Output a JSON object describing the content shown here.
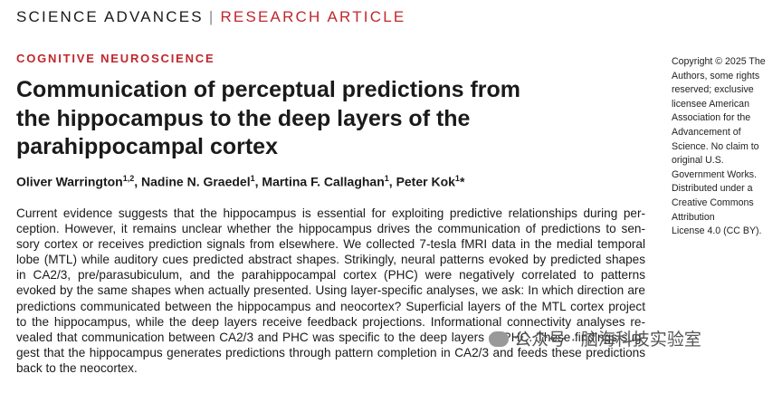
{
  "header": {
    "journal": "SCIENCE ADVANCES",
    "separator": "|",
    "article_type": "RESEARCH ARTICLE"
  },
  "section": "COGNITIVE NEUROSCIENCE",
  "title": [
    "Communication of perceptual predictions from",
    "the hippocampus to the deep layers of the",
    "parahippocampal cortex"
  ],
  "authors": {
    "separator": ",",
    "list": [
      {
        "name": "Oliver Warrington",
        "affiliation": "1,2"
      },
      {
        "name": "Nadine N. Graedel",
        "affiliation": "1"
      },
      {
        "name": "Martina F. Callaghan",
        "affiliation": "1"
      },
      {
        "name": "Peter Kok",
        "affiliation": "1",
        "corresponding": "*"
      }
    ]
  },
  "abstract": [
    "Current evidence suggests that the hippocampus is essential for exploiting predictive relationships during per-",
    "ception. However, it remains unclear whether the hippocampus drives the communication of predictions to sen-",
    "sory cortex or receives prediction signals from elsewhere. We collected 7-tesla fMRI data in the medial temporal",
    "lobe (MTL) while auditory cues predicted abstract shapes. Strikingly, neural patterns evoked by predicted shapes",
    "in CA2/3, pre/parasubiculum, and the parahippocampal cortex (PHC) were negatively correlated to patterns",
    "evoked by the same shapes when actually presented. Using layer-specific analyses, we ask: In which direction are",
    "predictions communicated between the hippocampus and neocortex? Superficial layers of the MTL cortex project",
    "to the hippocampus, while the deep layers receive feedback projections. Informational connectivity analyses re-",
    "vealed that communication between CA2/3 and PHC was specific to the deep layers of PHC. These findings sug-",
    "gest that the hippocampus generates predictions through pattern completion in CA2/3 and feeds these predictions",
    "back to the neocortex."
  ],
  "copyright": [
    "Copyright © 2025 The",
    "Authors, some rights",
    "reserved; exclusive",
    "licensee American",
    "Association for the",
    "Advancement of",
    "Science. No claim to",
    "original U.S.",
    "Government Works.",
    "Distributed under a",
    "Creative Commons",
    "Attribution",
    "License 4.0 (CC BY)."
  ],
  "watermark": "公众号 · 脑海科技实验室"
}
